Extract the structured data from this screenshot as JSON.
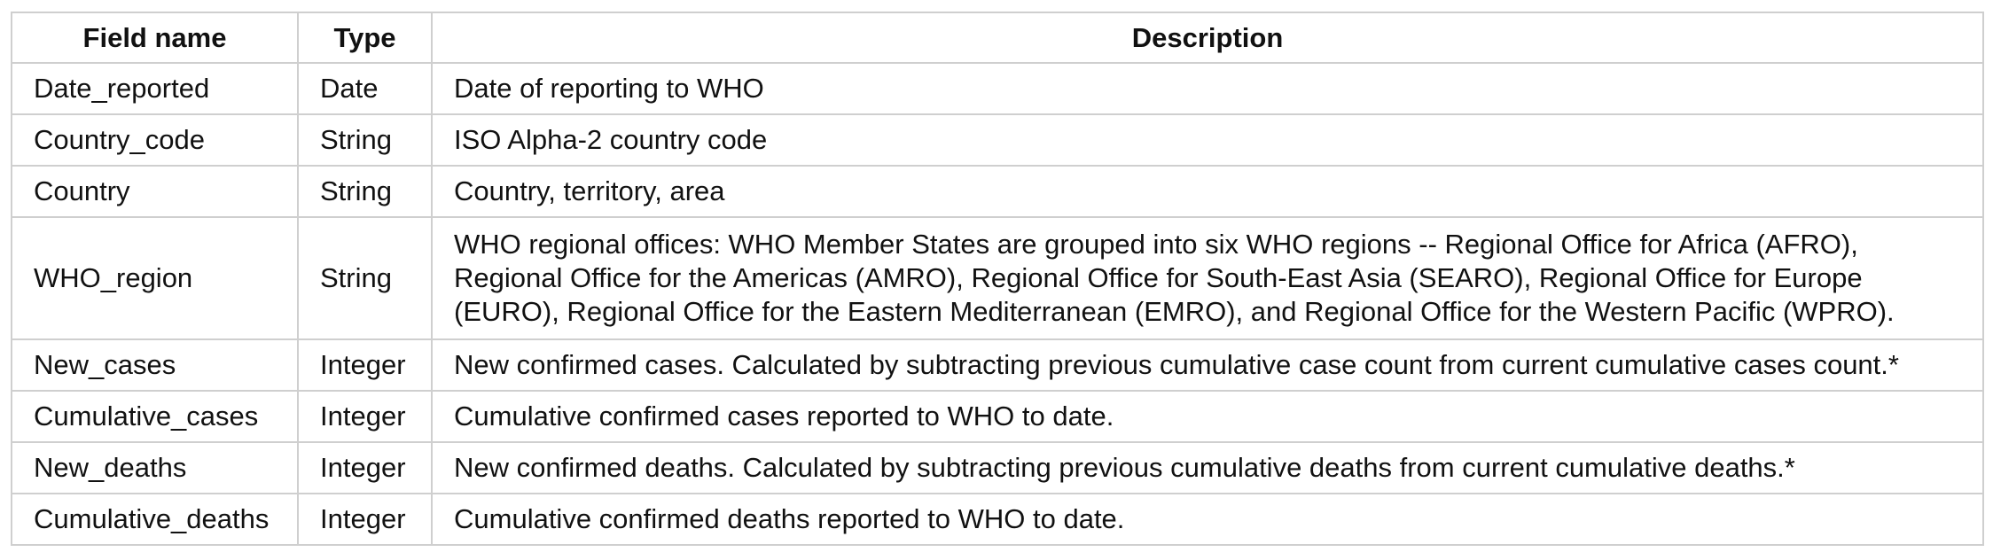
{
  "table": {
    "headers": [
      "Field name",
      "Type",
      "Description"
    ],
    "rows": [
      [
        "Date_reported",
        "Date",
        "Date of reporting to WHO"
      ],
      [
        "Country_code",
        "String",
        "ISO Alpha-2 country code"
      ],
      [
        "Country",
        "String",
        "Country, territory, area"
      ],
      [
        "WHO_region",
        "String",
        "WHO regional offices: WHO Member States are grouped into six WHO regions -- Regional Office for Africa (AFRO), Regional Office for the Americas (AMRO), Regional Office for South-East Asia (SEARO), Regional Office for Europe (EURO), Regional Office for the Eastern Mediterranean (EMRO), and Regional Office for the Western Pacific (WPRO)."
      ],
      [
        "New_cases",
        "Integer",
        "New confirmed cases. Calculated by subtracting previous cumulative case count from current cumulative cases count.*"
      ],
      [
        "Cumulative_cases",
        "Integer",
        "Cumulative confirmed cases reported to WHO to date."
      ],
      [
        "New_deaths",
        "Integer",
        "New confirmed deaths. Calculated by subtracting previous cumulative deaths from current cumulative deaths.*"
      ],
      [
        "Cumulative_deaths",
        "Integer",
        "Cumulative confirmed deaths reported to WHO to date."
      ]
    ]
  }
}
